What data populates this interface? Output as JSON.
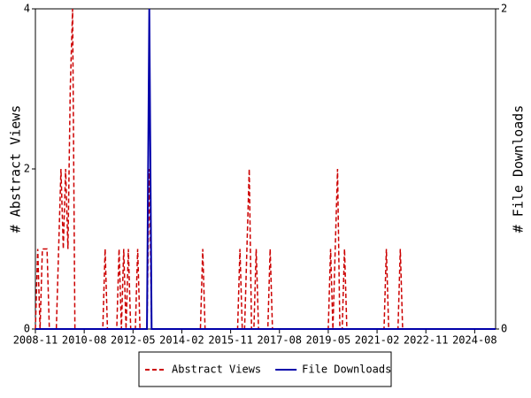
{
  "chart_data": {
    "type": "line",
    "x": [
      "2008-11",
      "2008-12",
      "2009-01",
      "2009-02",
      "2009-03",
      "2009-04",
      "2009-05",
      "2009-08",
      "2009-09",
      "2009-10",
      "2009-11",
      "2009-12",
      "2010-01",
      "2010-02",
      "2010-03",
      "2010-04",
      "2011-04",
      "2011-05",
      "2011-06",
      "2011-10",
      "2011-11",
      "2011-12",
      "2012-01",
      "2012-02",
      "2012-03",
      "2012-04",
      "2012-06",
      "2012-07",
      "2012-08",
      "2012-11",
      "2012-12",
      "2013-01",
      "2014-10",
      "2014-11",
      "2014-12",
      "2016-02",
      "2016-03",
      "2016-04",
      "2016-05",
      "2016-06",
      "2016-07",
      "2016-08",
      "2016-09",
      "2016-10",
      "2016-11",
      "2017-03",
      "2017-04",
      "2017-05",
      "2019-05",
      "2019-06",
      "2019-07",
      "2019-08",
      "2019-09",
      "2019-10",
      "2019-11",
      "2019-12",
      "2020-01",
      "2021-05",
      "2021-06",
      "2021-07",
      "2021-11",
      "2021-12",
      "2022-01",
      "2025-05"
    ],
    "series": [
      {
        "name": "Abstract Views",
        "color": "#cc0000",
        "style": "dashed",
        "values": [
          0,
          1,
          0,
          1,
          1,
          1,
          0,
          0,
          1,
          2,
          1,
          2,
          1,
          3,
          4,
          0,
          0,
          1,
          0,
          0,
          1,
          0,
          1,
          0,
          1,
          0,
          0,
          1,
          0,
          0,
          2,
          0,
          0,
          1,
          0,
          0,
          1,
          0,
          0,
          1,
          2,
          0,
          0,
          1,
          0,
          0,
          1,
          0,
          0,
          1,
          0,
          1,
          2,
          0,
          0,
          1,
          0,
          0,
          1,
          0,
          0,
          1,
          0,
          0
        ]
      },
      {
        "name": "File Downloads",
        "color": "#0000aa",
        "style": "solid",
        "axis": "y2",
        "values": [
          0,
          0,
          0,
          0,
          0,
          0,
          0,
          0,
          0,
          0,
          0,
          0,
          0,
          0,
          0,
          0,
          0,
          0,
          0,
          0,
          0,
          0,
          0,
          0,
          0,
          0,
          0,
          0,
          0,
          0,
          2,
          0,
          0,
          0,
          0,
          0,
          0,
          0,
          0,
          0,
          0,
          0,
          0,
          0,
          0,
          0,
          0,
          0,
          0,
          0,
          0,
          0,
          0,
          0,
          0,
          0,
          0,
          0,
          0,
          0,
          0,
          0,
          0,
          0
        ]
      }
    ],
    "xlim": [
      "2008-11",
      "2025-05"
    ],
    "xticks": [
      "2008-11",
      "2010-08",
      "2012-05",
      "2014-02",
      "2015-11",
      "2017-08",
      "2019-05",
      "2021-02",
      "2022-11",
      "2024-08"
    ],
    "ylabel": "# Abstract Views",
    "ylim": [
      0,
      4
    ],
    "yticks": [
      0,
      2,
      4
    ],
    "y2label": "# File Downloads",
    "y2lim": [
      0,
      2
    ],
    "y2ticks": [
      0,
      2
    ],
    "legend": "bottom"
  }
}
